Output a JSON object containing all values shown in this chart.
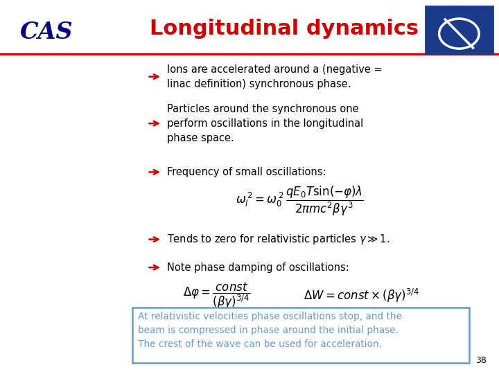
{
  "title": "Longitudinal dynamics",
  "title_color": "#cc0000",
  "cas_color": "#000080",
  "bg_color": "#ffffff",
  "header_line_color": "#cc0000",
  "arrow_color": "#cc0000",
  "bullet_color": "#000000",
  "highlight_box_color": "#6699cc",
  "highlight_bg": "#ffffff",
  "page_number": "38",
  "bullet1": "Ions are accelerated around a (negative =\nlinac definition) synchronous phase.",
  "bullet2": "Particles around the synchronous one\nperform oscillations in the longitudinal\nphase space.",
  "bullet3": "Frequency of small oscillations:",
  "bullet4": "Tends to zero for relativistic particles",
  "bullet5": "Note phase damping of oscillations:",
  "highlight_line1": "At relativistic velocities phase oscillations stop, and the",
  "highlight_line2": "beam is compressed in phase around the initial phase.",
  "highlight_line3": "The crest of the wave can be used for acceleration."
}
